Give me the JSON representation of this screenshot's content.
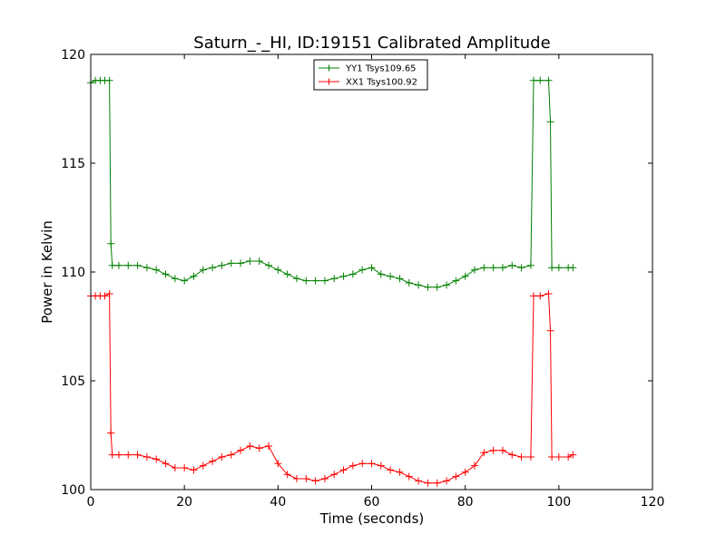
{
  "chart_data": {
    "type": "line",
    "title": "Saturn_-_HI, ID:19151 Calibrated Amplitude",
    "xlabel": "Time (seconds)",
    "ylabel": "Power in Kelvin",
    "xlim": [
      0,
      120
    ],
    "ylim": [
      100,
      120
    ],
    "x_ticks": [
      0,
      20,
      40,
      60,
      80,
      100,
      120
    ],
    "y_ticks": [
      100,
      105,
      110,
      115,
      120
    ],
    "grid": false,
    "legend_position": "top-center",
    "series": [
      {
        "name": "YY1 Tsys109.65",
        "color": "#008000",
        "marker": "+",
        "points": [
          [
            0,
            118.7
          ],
          [
            1,
            118.8
          ],
          [
            2,
            118.8
          ],
          [
            3,
            118.8
          ],
          [
            4,
            118.8
          ],
          [
            4.3,
            111.3
          ],
          [
            4.6,
            110.3
          ],
          [
            6,
            110.3
          ],
          [
            8,
            110.3
          ],
          [
            10,
            110.3
          ],
          [
            12,
            110.2
          ],
          [
            14,
            110.1
          ],
          [
            16,
            109.9
          ],
          [
            18,
            109.7
          ],
          [
            20,
            109.6
          ],
          [
            22,
            109.8
          ],
          [
            24,
            110.1
          ],
          [
            26,
            110.2
          ],
          [
            28,
            110.3
          ],
          [
            30,
            110.4
          ],
          [
            32,
            110.4
          ],
          [
            34,
            110.5
          ],
          [
            36,
            110.5
          ],
          [
            38,
            110.3
          ],
          [
            40,
            110.1
          ],
          [
            42,
            109.9
          ],
          [
            44,
            109.7
          ],
          [
            46,
            109.6
          ],
          [
            48,
            109.6
          ],
          [
            50,
            109.6
          ],
          [
            52,
            109.7
          ],
          [
            54,
            109.8
          ],
          [
            56,
            109.9
          ],
          [
            58,
            110.1
          ],
          [
            60,
            110.2
          ],
          [
            62,
            109.9
          ],
          [
            64,
            109.8
          ],
          [
            66,
            109.7
          ],
          [
            68,
            109.5
          ],
          [
            70,
            109.4
          ],
          [
            72,
            109.3
          ],
          [
            74,
            109.3
          ],
          [
            76,
            109.4
          ],
          [
            78,
            109.6
          ],
          [
            80,
            109.8
          ],
          [
            82,
            110.1
          ],
          [
            84,
            110.2
          ],
          [
            86,
            110.2
          ],
          [
            88,
            110.2
          ],
          [
            90,
            110.3
          ],
          [
            92,
            110.2
          ],
          [
            94,
            110.3
          ],
          [
            94.6,
            118.8
          ],
          [
            96,
            118.8
          ],
          [
            97.8,
            118.8
          ],
          [
            98.2,
            116.9
          ],
          [
            98.5,
            110.2
          ],
          [
            100,
            110.2
          ],
          [
            102,
            110.2
          ],
          [
            103,
            110.2
          ]
        ]
      },
      {
        "name": "XX1 Tsys100.92",
        "color": "#ff0000",
        "marker": "+",
        "points": [
          [
            0,
            108.9
          ],
          [
            1,
            108.9
          ],
          [
            2,
            108.9
          ],
          [
            3,
            108.9
          ],
          [
            4,
            109.0
          ],
          [
            4.3,
            102.6
          ],
          [
            4.6,
            101.6
          ],
          [
            6,
            101.6
          ],
          [
            8,
            101.6
          ],
          [
            10,
            101.6
          ],
          [
            12,
            101.5
          ],
          [
            14,
            101.4
          ],
          [
            16,
            101.2
          ],
          [
            18,
            101.0
          ],
          [
            20,
            101.0
          ],
          [
            22,
            100.9
          ],
          [
            24,
            101.1
          ],
          [
            26,
            101.3
          ],
          [
            28,
            101.5
          ],
          [
            30,
            101.6
          ],
          [
            32,
            101.8
          ],
          [
            34,
            102.0
          ],
          [
            36,
            101.9
          ],
          [
            38,
            102.0
          ],
          [
            40,
            101.2
          ],
          [
            42,
            100.7
          ],
          [
            44,
            100.5
          ],
          [
            46,
            100.5
          ],
          [
            48,
            100.4
          ],
          [
            50,
            100.5
          ],
          [
            52,
            100.7
          ],
          [
            54,
            100.9
          ],
          [
            56,
            101.1
          ],
          [
            58,
            101.2
          ],
          [
            60,
            101.2
          ],
          [
            62,
            101.1
          ],
          [
            64,
            100.9
          ],
          [
            66,
            100.8
          ],
          [
            68,
            100.6
          ],
          [
            70,
            100.4
          ],
          [
            72,
            100.3
          ],
          [
            74,
            100.3
          ],
          [
            76,
            100.4
          ],
          [
            78,
            100.6
          ],
          [
            80,
            100.8
          ],
          [
            82,
            101.1
          ],
          [
            84,
            101.7
          ],
          [
            86,
            101.8
          ],
          [
            88,
            101.8
          ],
          [
            90,
            101.6
          ],
          [
            92,
            101.5
          ],
          [
            94,
            101.5
          ],
          [
            94.6,
            108.9
          ],
          [
            96,
            108.9
          ],
          [
            97.8,
            109.0
          ],
          [
            98.2,
            107.3
          ],
          [
            98.5,
            101.5
          ],
          [
            100,
            101.5
          ],
          [
            102,
            101.5
          ],
          [
            103,
            101.6
          ]
        ]
      }
    ]
  }
}
